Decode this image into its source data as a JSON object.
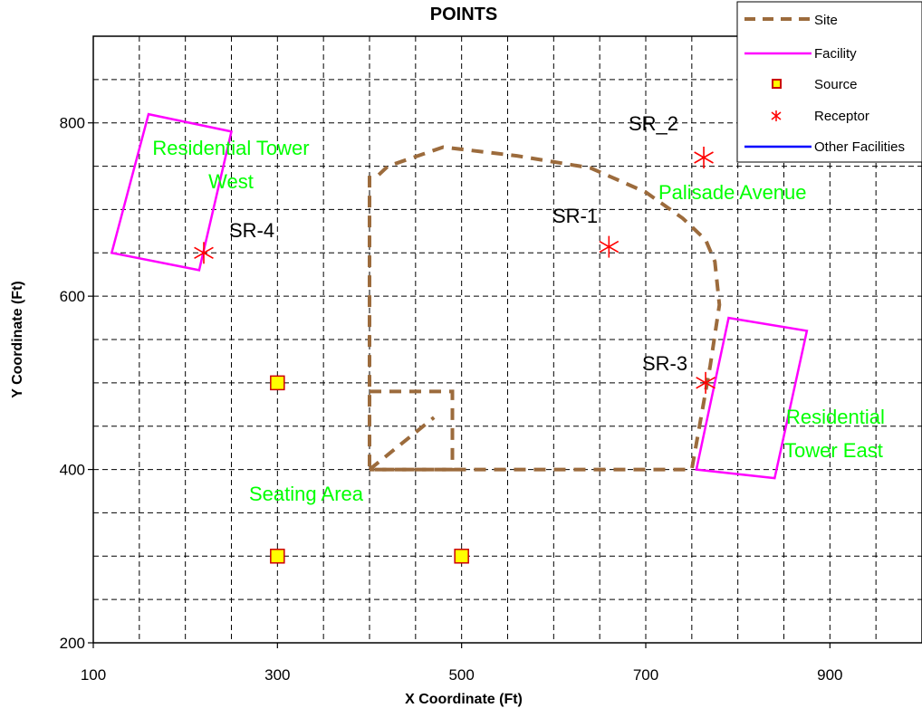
{
  "chart_data": {
    "type": "scatter",
    "title": "POINTS",
    "xlabel": "X Coordinate (Ft)",
    "ylabel": "Y Coordinate (Ft)",
    "xlim": [
      100,
      1000
    ],
    "ylim": [
      200,
      900
    ],
    "x_ticks": [
      100,
      300,
      500,
      700,
      900
    ],
    "y_ticks": [
      200,
      400,
      600,
      800
    ],
    "x_gridlines": [
      150,
      200,
      250,
      300,
      350,
      400,
      450,
      500,
      550,
      600,
      650,
      700,
      750,
      800,
      850,
      900,
      950
    ],
    "y_gridlines": [
      250,
      300,
      350,
      400,
      450,
      500,
      550,
      600,
      650,
      700,
      750,
      800,
      850
    ],
    "grid": true,
    "legend_position": "top-right",
    "legend": [
      {
        "label": "Site",
        "style": "dashed-line",
        "color": "#9C6B3C"
      },
      {
        "label": "Facility",
        "style": "line",
        "color": "#FF00FF"
      },
      {
        "label": "Source",
        "style": "square-marker",
        "color": "#FFFF00"
      },
      {
        "label": "Receptor",
        "style": "star-marker",
        "color": "#FF0000"
      },
      {
        "label": "Other Facilities",
        "style": "line",
        "color": "#0000FF"
      }
    ],
    "site": {
      "outline": [
        [
          410,
          740
        ],
        [
          420,
          750
        ],
        [
          480,
          772
        ],
        [
          560,
          762
        ],
        [
          640,
          748
        ],
        [
          700,
          720
        ],
        [
          740,
          690
        ],
        [
          765,
          665
        ],
        [
          775,
          640
        ],
        [
          780,
          590
        ],
        [
          770,
          520
        ],
        [
          755,
          430
        ],
        [
          750,
          400
        ],
        [
          400,
          400
        ],
        [
          400,
          740
        ]
      ],
      "inner_outline": [
        [
          400,
          490
        ],
        [
          490,
          490
        ],
        [
          490,
          400
        ],
        [
          400,
          400
        ]
      ],
      "inner_diagonal": [
        [
          400,
          400
        ],
        [
          470,
          460
        ]
      ]
    },
    "facilities": [
      {
        "name": "Residential Tower West",
        "polygon": [
          [
            160,
            810
          ],
          [
            250,
            790
          ],
          [
            215,
            630
          ],
          [
            120,
            650
          ]
        ]
      },
      {
        "name": "Residential Tower East",
        "polygon": [
          [
            790,
            575
          ],
          [
            875,
            560
          ],
          [
            840,
            390
          ],
          [
            755,
            400
          ]
        ]
      }
    ],
    "sources": [
      {
        "x": 300,
        "y": 500
      },
      {
        "x": 300,
        "y": 300
      },
      {
        "x": 500,
        "y": 300
      }
    ],
    "receptors": [
      {
        "label": "SR-1",
        "x": 660,
        "y": 657
      },
      {
        "label": "SR_2",
        "x": 763,
        "y": 760
      },
      {
        "label": "SR-3",
        "x": 765,
        "y": 500
      },
      {
        "label": "SR-4",
        "x": 220,
        "y": 650
      }
    ],
    "area_labels": [
      {
        "lines": [
          "Residential Tower",
          "West"
        ],
        "color": "#00FF00"
      },
      {
        "lines": [
          "Palisade Avenue"
        ],
        "color": "#00FF00"
      },
      {
        "lines": [
          "Residential",
          "Tower East"
        ],
        "color": "#00FF00"
      },
      {
        "lines": [
          "Seating Area"
        ],
        "color": "#00FF00"
      }
    ],
    "colors": {
      "site": "#9C6B3C",
      "facility": "#FF00FF",
      "source_fill": "#FFFF00",
      "source_edge": "#CC0000",
      "receptor": "#FF0000",
      "grid": "#000000",
      "other_facilities": "#0000FF",
      "area_label": "#00FF00"
    }
  }
}
